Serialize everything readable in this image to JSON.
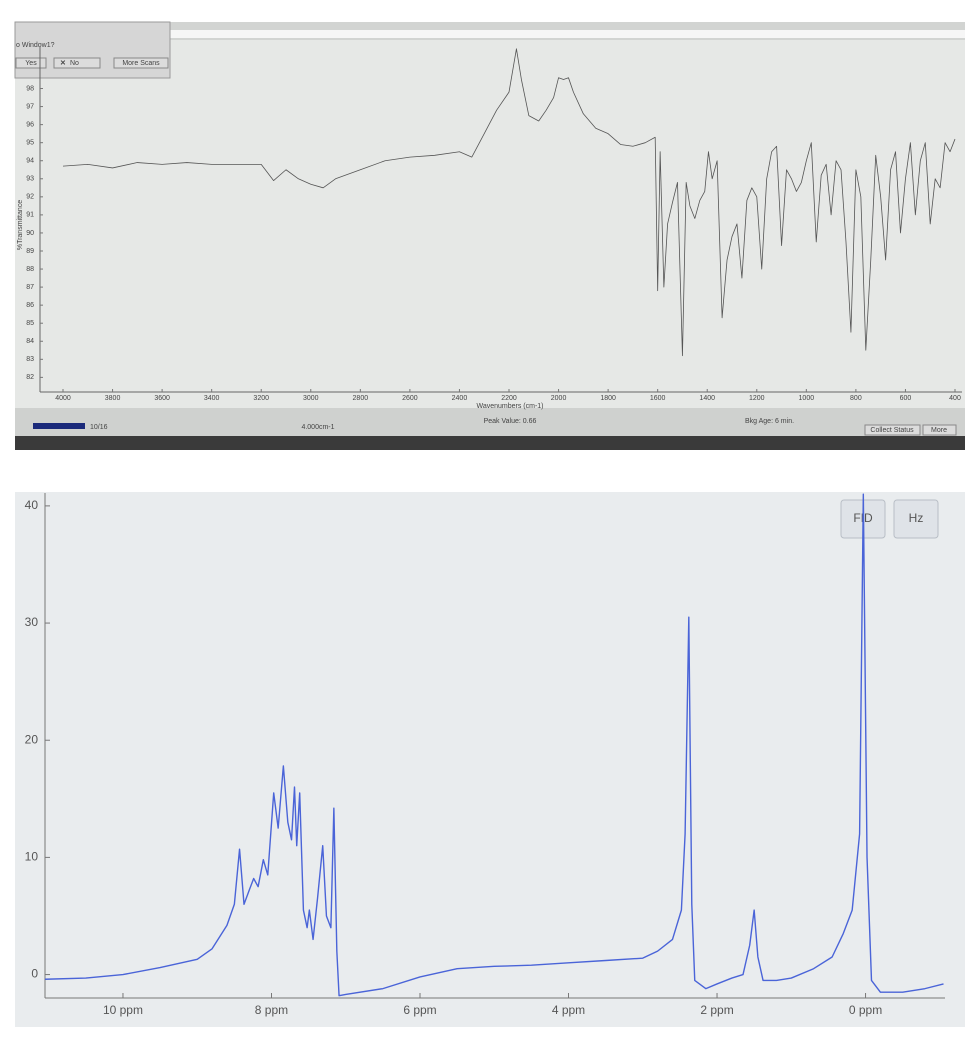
{
  "chart_data": [
    {
      "type": "line",
      "x_label": "Wavenumbers (cm-1)",
      "y_label": "%Transmittance",
      "color": "#555555",
      "xlim": [
        4000,
        400
      ],
      "ylim": [
        81.3,
        100.3
      ],
      "xticks": [
        4000,
        3800,
        3600,
        3400,
        3200,
        3000,
        2800,
        2600,
        2400,
        2200,
        2000,
        1800,
        1600,
        1400,
        1200,
        1000,
        800,
        600,
        400
      ],
      "yticks": [
        82,
        83,
        84,
        85,
        86,
        87,
        88,
        89,
        90,
        91,
        92,
        93,
        94,
        95,
        96,
        97,
        98
      ],
      "x": [
        4000,
        3900,
        3800,
        3700,
        3600,
        3500,
        3400,
        3300,
        3200,
        3150,
        3100,
        3050,
        3000,
        2950,
        2900,
        2800,
        2700,
        2600,
        2500,
        2400,
        2350,
        2300,
        2250,
        2200,
        2170,
        2150,
        2120,
        2080,
        2050,
        2020,
        2000,
        1980,
        1960,
        1940,
        1900,
        1850,
        1800,
        1750,
        1700,
        1650,
        1610,
        1600,
        1590,
        1575,
        1560,
        1540,
        1520,
        1500,
        1485,
        1470,
        1450,
        1430,
        1410,
        1395,
        1380,
        1360,
        1340,
        1320,
        1300,
        1280,
        1260,
        1240,
        1220,
        1200,
        1180,
        1160,
        1140,
        1120,
        1100,
        1080,
        1060,
        1040,
        1020,
        1000,
        980,
        960,
        940,
        920,
        900,
        880,
        860,
        840,
        820,
        800,
        780,
        760,
        740,
        720,
        700,
        680,
        660,
        640,
        620,
        600,
        580,
        560,
        540,
        520,
        500,
        480,
        460,
        440,
        420,
        400
      ],
      "values": [
        93.7,
        93.8,
        93.6,
        93.9,
        93.8,
        93.9,
        93.8,
        93.8,
        93.8,
        92.9,
        93.5,
        93.0,
        92.7,
        92.5,
        93.0,
        93.5,
        94.0,
        94.2,
        94.3,
        94.5,
        94.2,
        95.5,
        96.8,
        97.8,
        100.2,
        98.5,
        96.5,
        96.2,
        96.8,
        97.5,
        98.6,
        98.5,
        98.6,
        97.8,
        96.6,
        95.8,
        95.5,
        94.9,
        94.8,
        95.0,
        95.3,
        86.8,
        94.5,
        87.0,
        90.5,
        91.7,
        92.8,
        83.2,
        92.8,
        91.5,
        90.8,
        91.8,
        92.3,
        94.5,
        93.0,
        94.0,
        85.3,
        88.5,
        89.8,
        90.5,
        87.5,
        91.8,
        92.5,
        92.0,
        88.0,
        93.0,
        94.5,
        94.8,
        89.3,
        93.5,
        93.0,
        92.3,
        92.8,
        94.0,
        95.0,
        89.5,
        93.2,
        93.8,
        91.0,
        94.0,
        93.5,
        89.5,
        84.5,
        93.5,
        92.0,
        83.5,
        88.5,
        94.3,
        92.0,
        88.5,
        93.5,
        94.5,
        90.0,
        93.0,
        95.0,
        91.0,
        94.0,
        95.0,
        90.5,
        93.0,
        92.5,
        95.0,
        94.5,
        95.2
      ]
    },
    {
      "type": "line",
      "color": "#4a64d8",
      "xlim": [
        11.05,
        -1.07
      ],
      "ylim": [
        -2,
        41.1
      ],
      "xticks": [
        {
          "value": 10,
          "label": "10 ppm"
        },
        {
          "value": 8,
          "label": "8 ppm"
        },
        {
          "value": 6,
          "label": "6 ppm"
        },
        {
          "value": 4,
          "label": "4 ppm"
        },
        {
          "value": 2,
          "label": "2 ppm"
        },
        {
          "value": 0,
          "label": "0 ppm"
        }
      ],
      "yticks": [
        0,
        10,
        20,
        30,
        40
      ],
      "x": [
        11.05,
        10.5,
        10,
        9.5,
        9,
        8.8,
        8.6,
        8.5,
        8.43,
        8.37,
        8.3,
        8.24,
        8.18,
        8.11,
        8.05,
        7.97,
        7.91,
        7.84,
        7.78,
        7.73,
        7.69,
        7.66,
        7.62,
        7.57,
        7.52,
        7.49,
        7.44,
        7.38,
        7.31,
        7.26,
        7.2,
        7.16,
        7.12,
        7.09,
        7.0,
        6.5,
        6,
        5.5,
        5,
        4.5,
        4,
        3.5,
        3,
        2.8,
        2.6,
        2.48,
        2.43,
        2.38,
        2.34,
        2.3,
        2.15,
        2.0,
        1.8,
        1.65,
        1.56,
        1.5,
        1.45,
        1.38,
        1.2,
        1.0,
        0.7,
        0.45,
        0.3,
        0.18,
        0.08,
        0.03,
        -0.02,
        -0.08,
        -0.2,
        -0.5,
        -0.8,
        -1.05
      ],
      "values": [
        -0.4,
        -0.3,
        0,
        0.6,
        1.3,
        2.2,
        4.2,
        6,
        10.7,
        6,
        7.2,
        8.2,
        7.5,
        9.8,
        8.5,
        15.5,
        12.5,
        17.8,
        13,
        11.5,
        16,
        11,
        15.5,
        5.5,
        4,
        5.5,
        3,
        6.5,
        11,
        5,
        4,
        14.2,
        2,
        -1.8,
        -1.7,
        -1.2,
        -0.2,
        0.5,
        0.7,
        0.8,
        1.0,
        1.2,
        1.4,
        2.0,
        3.0,
        5.5,
        12,
        30.5,
        6,
        -0.5,
        -1.2,
        -0.8,
        -0.3,
        0,
        2.5,
        5.5,
        1.5,
        -0.5,
        -0.5,
        -0.3,
        0.5,
        1.5,
        3.5,
        5.5,
        12,
        41,
        10,
        -0.5,
        -1.5,
        -1.5,
        -1.2,
        -0.8
      ]
    }
  ],
  "ir_window": {
    "dialog_prompt": "o Window1?",
    "buttons": [
      "Yes",
      "No",
      "More Scans"
    ],
    "status": [
      "10/16",
      "4.000cm-1",
      "Peak Value: 0.66",
      "Bkg Age: 6 min."
    ],
    "status_buttons": [
      "Collect Status",
      "More"
    ]
  },
  "nmr_buttons": [
    "FID",
    "Hz"
  ]
}
